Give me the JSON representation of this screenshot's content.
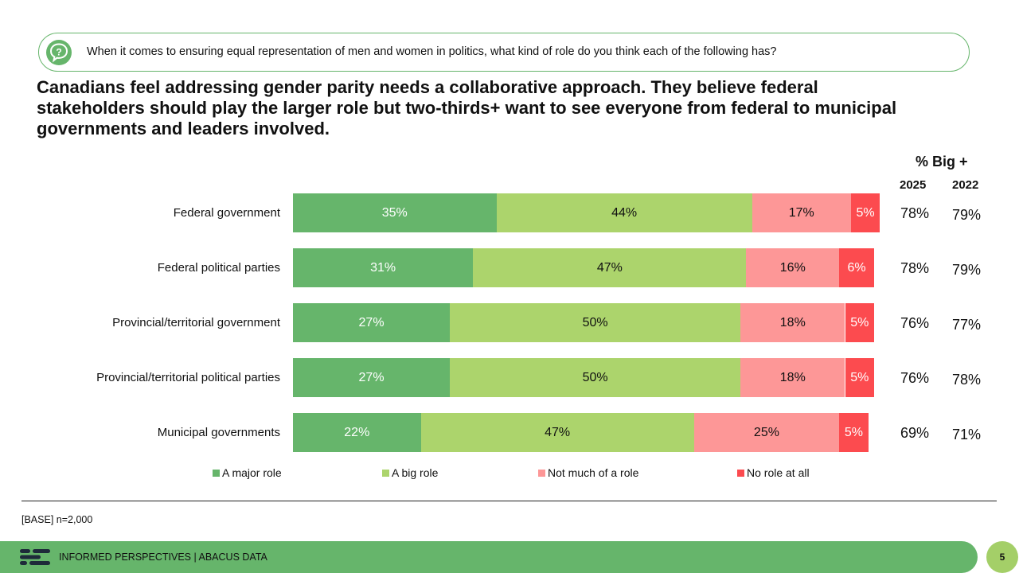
{
  "question": {
    "text": "When it comes to ensuring equal representation of men and women in politics, what kind of role do you think each of the following has?"
  },
  "headline": "Canadians feel addressing gender parity needs a collaborative approach. They believe federal stakeholders should play the larger role but two-thirds+ want to see everyone from federal to municipal governments and leaders involved.",
  "summary_header": "% Big +",
  "colors": {
    "major": "#66b56b",
    "big": "#acd46c",
    "not_much": "#fd9797",
    "none": "#fc4b4f",
    "accent": "#66b56b"
  },
  "chart_data": {
    "type": "bar",
    "orientation": "horizontal",
    "stacked": true,
    "categories": [
      "Federal government",
      "Federal political parties",
      "Provincial/territorial government",
      "Provincial/territorial political parties",
      "Municipal governments"
    ],
    "series": [
      {
        "name": "A major role",
        "values": [
          35,
          31,
          27,
          27,
          22
        ],
        "labels": [
          "35%",
          "31%",
          "27%",
          "27%",
          "22%"
        ]
      },
      {
        "name": "A big role",
        "values": [
          44,
          47,
          50,
          50,
          47
        ],
        "labels": [
          "44%",
          "47%",
          "50%",
          "50%",
          "47%"
        ]
      },
      {
        "name": "Not much of a role",
        "values": [
          17,
          16,
          18,
          18,
          25
        ],
        "labels": [
          "17%",
          "16%",
          "18%",
          "18%",
          "25%"
        ]
      },
      {
        "name": "No role at all",
        "values": [
          5,
          6,
          5,
          5,
          5
        ],
        "labels": [
          "5%",
          "6%",
          "5%",
          "5%",
          "5%"
        ]
      }
    ],
    "summary": {
      "years": [
        "2025",
        "2022"
      ],
      "values": [
        [
          "78%",
          "78%",
          "76%",
          "76%",
          "69%"
        ],
        [
          "79%",
          "79%",
          "77%",
          "78%",
          "71%"
        ]
      ]
    },
    "legend": "bottom"
  },
  "footnote": "[BASE] n=2,000",
  "footer": {
    "text": "INFORMED PERSPECTIVES | ABACUS DATA",
    "page": "5"
  }
}
